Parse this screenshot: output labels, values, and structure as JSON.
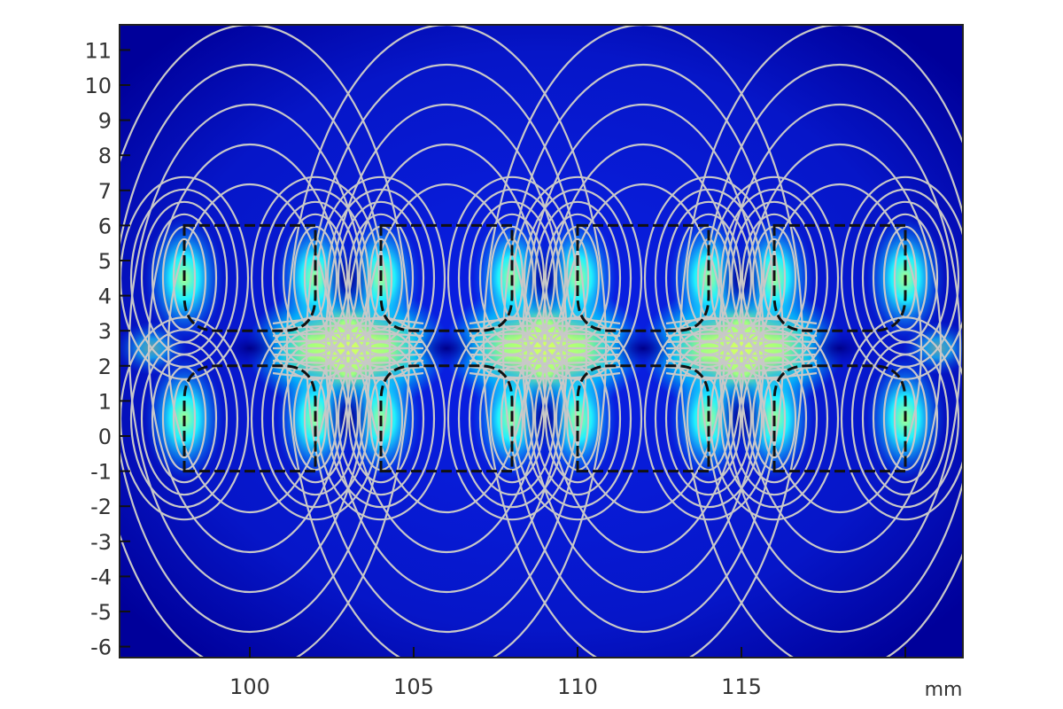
{
  "chart_data": {
    "type": "heatmap",
    "title": "",
    "xlabel": "",
    "ylabel": "",
    "unit_label": "mm",
    "xlim": [
      96.0,
      121.8
    ],
    "ylim": [
      -6.35,
      11.7
    ],
    "x_ticks": [
      100,
      105,
      110,
      115,
      120
    ],
    "x_tick_labels": [
      "100",
      "105",
      "110",
      "115",
      ""
    ],
    "y_ticks": [
      11,
      10,
      9,
      8,
      7,
      6,
      5,
      4,
      3,
      2,
      1,
      0,
      -1,
      -2,
      -3,
      -4,
      -5,
      -6
    ],
    "y_tick_labels": [
      "11",
      "10",
      "9",
      "8",
      "7",
      "6",
      "5",
      "4",
      "3",
      "2",
      "1",
      "0",
      "-1",
      "-2",
      "-3",
      "-4",
      "-5",
      "-6"
    ],
    "grid": false,
    "colormap": [
      "#00008c",
      "#0a1ee6",
      "#00e5ff",
      "#c8ff50"
    ],
    "contour_color": "#c8c8c8",
    "magnets": [
      {
        "x": [
          98,
          102
        ],
        "y": [
          3,
          6
        ],
        "rounded": "bottom"
      },
      {
        "x": [
          104,
          108
        ],
        "y": [
          3,
          6
        ],
        "rounded": "bottom"
      },
      {
        "x": [
          110,
          114
        ],
        "y": [
          3,
          6
        ],
        "rounded": "bottom"
      },
      {
        "x": [
          116,
          120
        ],
        "y": [
          3,
          6
        ],
        "rounded": "bottom"
      },
      {
        "x": [
          98,
          102
        ],
        "y": [
          -1,
          2
        ],
        "rounded": "top"
      },
      {
        "x": [
          104,
          108
        ],
        "y": [
          -1,
          2
        ],
        "rounded": "top"
      },
      {
        "x": [
          110,
          114
        ],
        "y": [
          -1,
          2
        ],
        "rounded": "top"
      },
      {
        "x": [
          116,
          120
        ],
        "y": [
          -1,
          2
        ],
        "rounded": "top"
      }
    ]
  }
}
